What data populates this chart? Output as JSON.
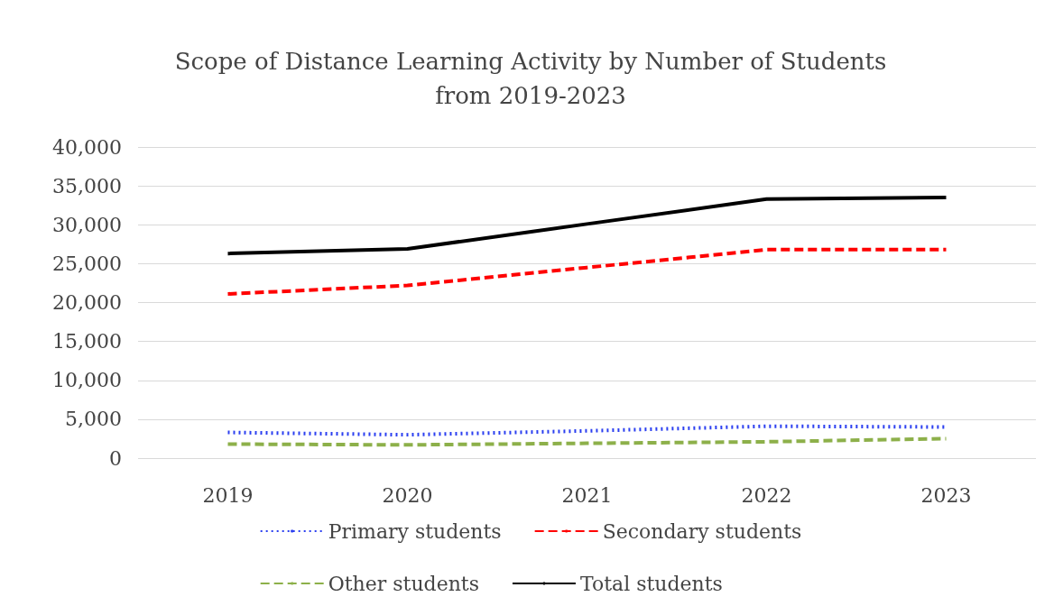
{
  "chart_data": {
    "type": "line",
    "title": "Scope of Distance Learning Activity by Number of Students\nfrom 2019-2023",
    "categories": [
      "2019",
      "2020",
      "2021",
      "2022",
      "2023"
    ],
    "series": [
      {
        "name": "Primary students",
        "color": "#2b3ff0",
        "line_style": "dotted",
        "values": [
          3300,
          3000,
          3500,
          4100,
          4000
        ]
      },
      {
        "name": "Secondary students",
        "color": "#ff0000",
        "line_style": "dashed",
        "values": [
          21100,
          22200,
          24500,
          26800,
          26800
        ]
      },
      {
        "name": "Other students",
        "color": "#8db04a",
        "line_style": "dashed",
        "values": [
          1800,
          1700,
          1900,
          2100,
          2500
        ]
      },
      {
        "name": "Total students",
        "color": "#000000",
        "line_style": "solid",
        "values": [
          26300,
          26900,
          30100,
          33300,
          33500
        ]
      }
    ],
    "ylim": [
      0,
      40000
    ],
    "yticks": [
      0,
      {
        "value": 5000,
        "label": "5,000"
      },
      {
        "value": 10000,
        "label": "10,000"
      },
      {
        "value": 15000,
        "label": "15,000"
      },
      {
        "value": 20000,
        "label": "20,000"
      },
      {
        "value": 25000,
        "label": "25,000"
      },
      {
        "value": 30000,
        "label": "30,000"
      },
      {
        "value": 35000,
        "label": "35,000"
      },
      {
        "value": 40000,
        "label": "40,000"
      }
    ],
    "grid": "y",
    "legend": "bottom",
    "marker": "none"
  }
}
